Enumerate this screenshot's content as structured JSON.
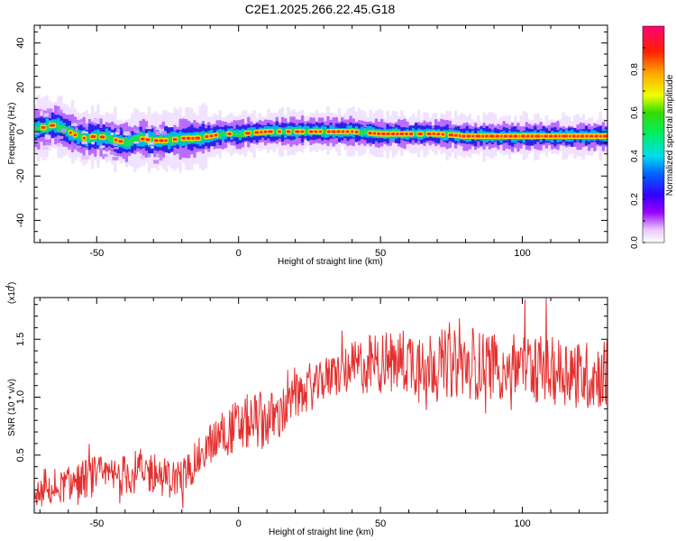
{
  "title": "C2E1.2025.266.22.45.G18",
  "chart_data": [
    {
      "type": "heatmap",
      "xlabel": "Height of straight line (km)",
      "ylabel": "Frequency (Hz)",
      "xlim": [
        -72,
        130
      ],
      "ylim": [
        -50,
        48
      ],
      "xticks": [
        "-50",
        "0",
        "50",
        "100"
      ],
      "xtick_values": [
        -50,
        0,
        50,
        100
      ],
      "yticks": [
        "40",
        "20",
        "0",
        "-20",
        "-40"
      ],
      "ytick_values": [
        40,
        20,
        0,
        -20,
        -40
      ],
      "colorbar": {
        "label": "Normalized spectral amplitude",
        "range": [
          0,
          1
        ],
        "ticks": [
          "0.0",
          "0.2",
          "0.4",
          "0.6",
          "0.8"
        ],
        "tick_values": [
          0.0,
          0.2,
          0.4,
          0.6,
          0.8
        ]
      },
      "ridge": {
        "x": [
          -72,
          -65,
          -60,
          -55,
          -50,
          -45,
          -40,
          -35,
          -30,
          -25,
          -20,
          -15,
          -10,
          -5,
          0,
          10,
          20,
          30,
          40,
          50,
          60,
          70,
          80,
          90,
          100,
          110,
          120,
          130
        ],
        "y": [
          1,
          3,
          0,
          -3,
          -2,
          -3,
          -5,
          -3,
          -4,
          -4,
          -3,
          -3,
          -2,
          -1,
          -1,
          0,
          0,
          0,
          0,
          -1,
          -1,
          -1,
          -2,
          -2,
          -2,
          -2,
          -2,
          -2
        ]
      }
    },
    {
      "type": "line",
      "xlabel": "Height of straight line (km)",
      "ylabel": "SNR (10 * v/v)",
      "yscale_label": "(x10",
      "yscale_exponent": "4",
      "xlim": [
        -72,
        130
      ],
      "ylim": [
        0,
        18600
      ],
      "xticks": [
        "-50",
        "0",
        "50",
        "100"
      ],
      "xtick_values": [
        -50,
        0,
        50,
        100
      ],
      "yticks": [
        "0.5",
        "1.0",
        "1.5"
      ],
      "ytick_values": [
        5000,
        10000,
        15000
      ],
      "color": "#e53030",
      "series": [
        {
          "x": [
            -72,
            -65,
            -60,
            -55,
            -50,
            -45,
            -40,
            -35,
            -30,
            -25,
            -20,
            -15,
            -10,
            -5,
            0,
            5,
            10,
            15,
            20,
            25,
            30,
            35,
            40,
            45,
            50,
            55,
            60,
            65,
            70,
            75,
            80,
            85,
            90,
            95,
            100,
            105,
            110,
            115,
            120,
            125,
            130
          ],
          "y": [
            1500,
            2000,
            2500,
            2900,
            3200,
            3000,
            3300,
            3600,
            3500,
            3000,
            3000,
            4500,
            6000,
            7000,
            7500,
            8000,
            8000,
            8500,
            10000,
            10500,
            11500,
            12000,
            12500,
            12800,
            13000,
            13000,
            13200,
            13000,
            13000,
            12800,
            12900,
            12700,
            12800,
            12600,
            12800,
            12500,
            12200,
            12300,
            12000,
            11800,
            12200
          ],
          "noise": [
            1100,
            1300,
            1500,
            1700,
            1800,
            1800,
            1800,
            2000,
            1900,
            1700,
            1700,
            1700,
            1800,
            2100,
            2400,
            2500,
            2500,
            2200,
            2000,
            1800,
            1800,
            2000,
            2300,
            2600,
            2700,
            2800,
            3000,
            3000,
            3000,
            3000,
            3000,
            3000,
            3000,
            3000,
            3000,
            3000,
            3000,
            3000,
            3000,
            3000,
            3000
          ]
        }
      ]
    }
  ]
}
